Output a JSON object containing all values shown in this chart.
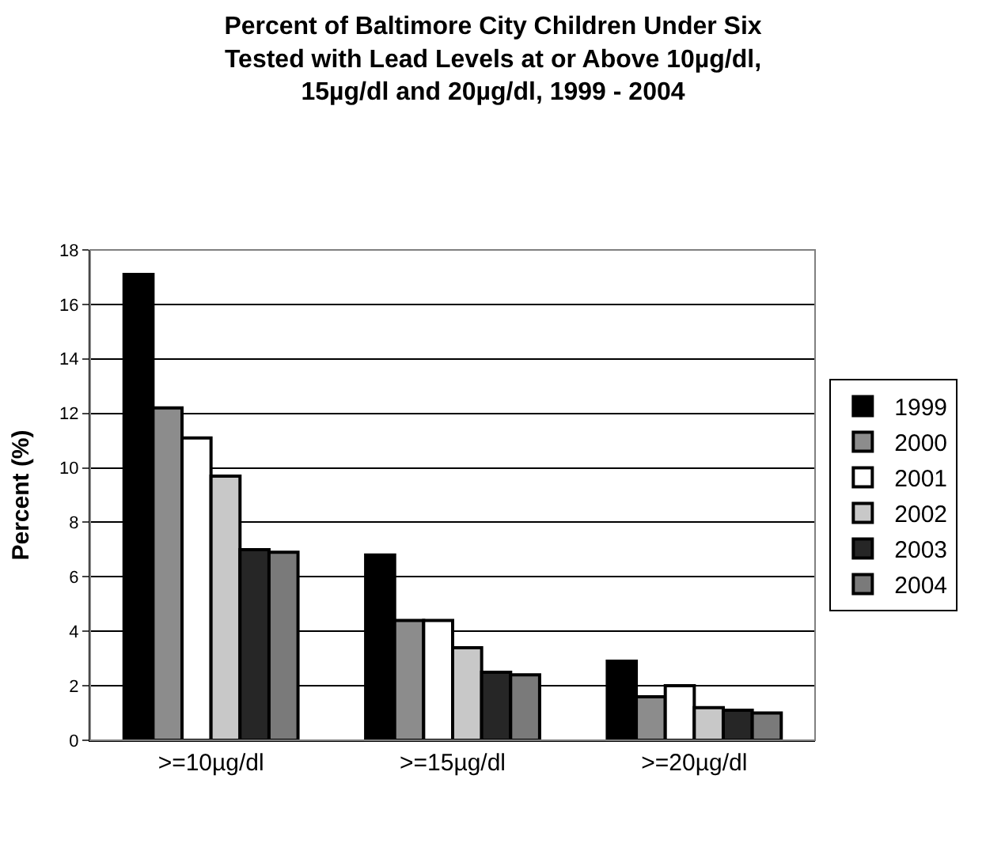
{
  "chart_data": {
    "type": "bar",
    "title": "Percent of Baltimore City Children Under Six\nTested with Lead Levels at or Above 10µg/dl,\n15µg/dl and 20µg/dl, 1999 - 2004",
    "ylabel": "Percent (%)",
    "categories": [
      ">=10µg/dl",
      ">=15µg/dl",
      ">=20µg/dl"
    ],
    "series": [
      {
        "name": "1999",
        "color": "#000000",
        "values": [
          17.1,
          6.8,
          2.9
        ]
      },
      {
        "name": "2000",
        "color": "#8c8c8c",
        "values": [
          12.2,
          4.4,
          1.6
        ]
      },
      {
        "name": "2001",
        "color": "#ffffff",
        "values": [
          11.1,
          4.4,
          2.0
        ]
      },
      {
        "name": "2002",
        "color": "#c8c8c8",
        "values": [
          9.7,
          3.4,
          1.2
        ]
      },
      {
        "name": "2003",
        "color": "#262626",
        "values": [
          7.0,
          2.5,
          1.1
        ]
      },
      {
        "name": "2004",
        "color": "#7a7a7a",
        "values": [
          6.9,
          2.4,
          1.0
        ]
      }
    ],
    "ylim": [
      0,
      18
    ],
    "yticks": [
      0,
      2,
      4,
      6,
      8,
      10,
      12,
      14,
      16,
      18
    ],
    "grid": "y",
    "legend": "right"
  }
}
